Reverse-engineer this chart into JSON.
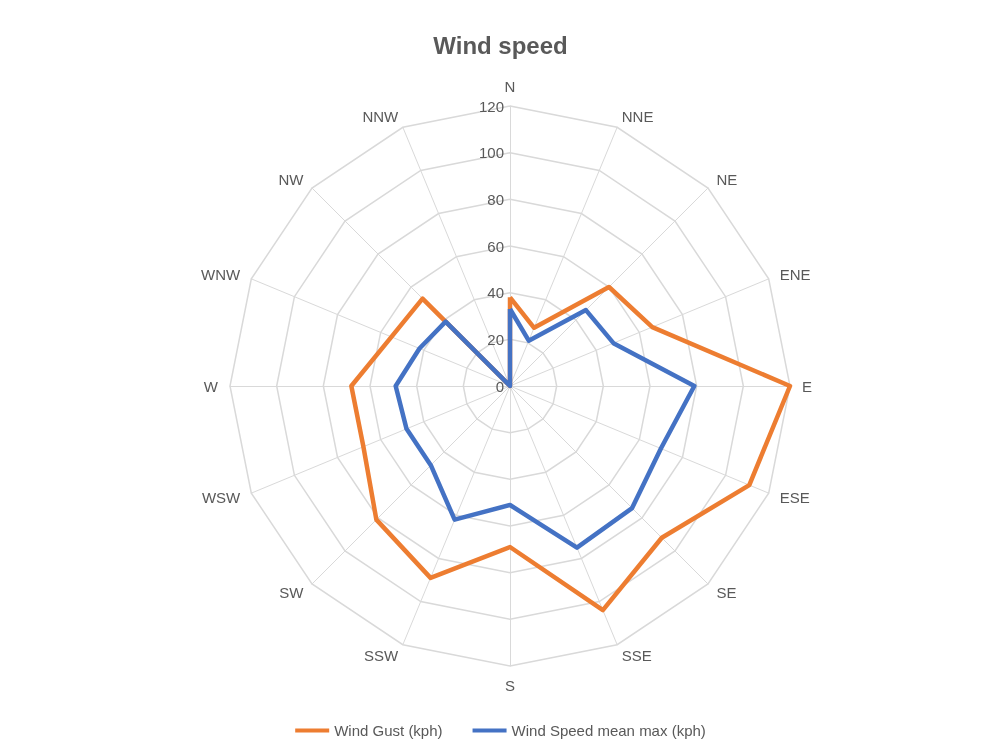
{
  "chart_data": {
    "type": "radar",
    "title": "Wind speed",
    "categories": [
      "N",
      "NNE",
      "NE",
      "ENE",
      "E",
      "ESE",
      "SE",
      "SSE",
      "S",
      "SSW",
      "SW",
      "WSW",
      "W",
      "WNW",
      "NW",
      "NNW"
    ],
    "series": [
      {
        "name": "Wind Gust (kph)",
        "color": "#ed7d31",
        "values": [
          38,
          27,
          60,
          66,
          120,
          111,
          92,
          104,
          69,
          89,
          81,
          68,
          68,
          55,
          53,
          0
        ]
      },
      {
        "name": "Wind Speed mean max (kph)",
        "color": "#4472c4",
        "values": [
          33,
          21,
          46,
          48,
          79,
          70,
          74,
          75,
          51,
          62,
          48,
          48,
          49,
          42,
          39,
          0
        ]
      }
    ],
    "ylim": [
      0,
      120
    ],
    "yticks": [
      0,
      20,
      40,
      60,
      80,
      100,
      120
    ],
    "grid": true,
    "legend": "bottom",
    "marker": "none",
    "line_style": "solid"
  }
}
